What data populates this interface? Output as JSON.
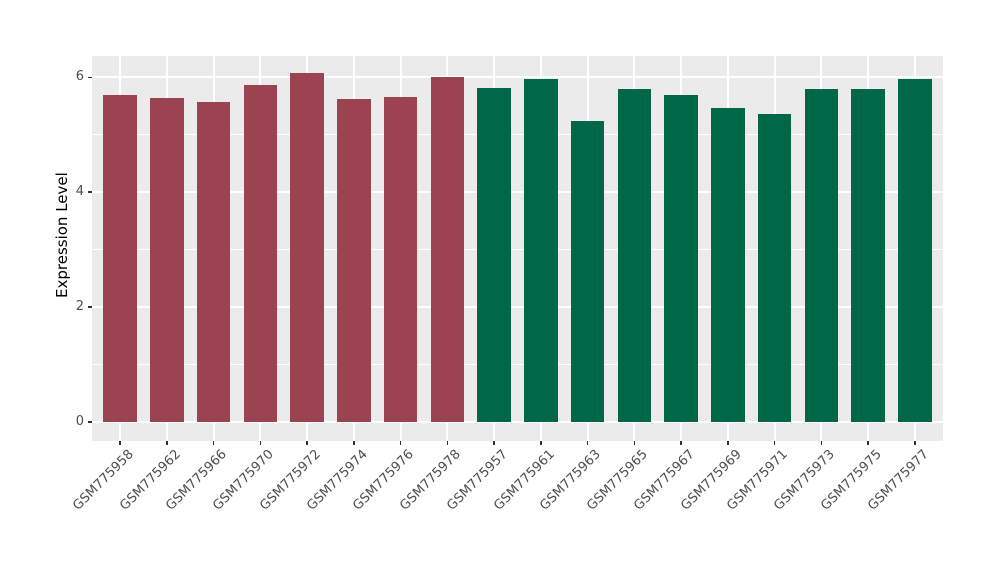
{
  "chart_data": {
    "type": "bar",
    "title": "",
    "xlabel": "",
    "ylabel": "Expression Level",
    "legend": null,
    "grid": "on",
    "y_axis": {
      "major_ticks": [
        0,
        2,
        4,
        6
      ],
      "minor_ticks": [
        1,
        3,
        5
      ],
      "tick_labels": [
        "0",
        "2",
        "4",
        "6"
      ],
      "display_min": -0.33,
      "display_max": 6.37
    },
    "groups": {
      "maroon": "#9C4352",
      "green": "#006747"
    },
    "bars": [
      {
        "label": "GSM775958",
        "value": 5.69,
        "group": "maroon"
      },
      {
        "label": "GSM775962",
        "value": 5.64,
        "group": "maroon"
      },
      {
        "label": "GSM775966",
        "value": 5.57,
        "group": "maroon"
      },
      {
        "label": "GSM775970",
        "value": 5.87,
        "group": "maroon"
      },
      {
        "label": "GSM775972",
        "value": 6.07,
        "group": "maroon"
      },
      {
        "label": "GSM775974",
        "value": 5.63,
        "group": "maroon"
      },
      {
        "label": "GSM775976",
        "value": 5.65,
        "group": "maroon"
      },
      {
        "label": "GSM775978",
        "value": 6.0,
        "group": "maroon"
      },
      {
        "label": "GSM775957",
        "value": 5.82,
        "group": "green"
      },
      {
        "label": "GSM775961",
        "value": 5.97,
        "group": "green"
      },
      {
        "label": "GSM775963",
        "value": 5.24,
        "group": "green"
      },
      {
        "label": "GSM775965",
        "value": 5.79,
        "group": "green"
      },
      {
        "label": "GSM775967",
        "value": 5.69,
        "group": "green"
      },
      {
        "label": "GSM775969",
        "value": 5.47,
        "group": "green"
      },
      {
        "label": "GSM775971",
        "value": 5.36,
        "group": "green"
      },
      {
        "label": "GSM775973",
        "value": 5.79,
        "group": "green"
      },
      {
        "label": "GSM775975",
        "value": 5.8,
        "group": "green"
      },
      {
        "label": "GSM775977",
        "value": 5.97,
        "group": "green"
      }
    ],
    "style": {
      "panel_bg": "#EBEBEB",
      "grid_color": "#FFFFFF",
      "tick_color": "#333333",
      "axis_text_color": "#4D4D4D",
      "axis_title_color": "#000000",
      "figure_bg": "#FFFFFF"
    }
  }
}
